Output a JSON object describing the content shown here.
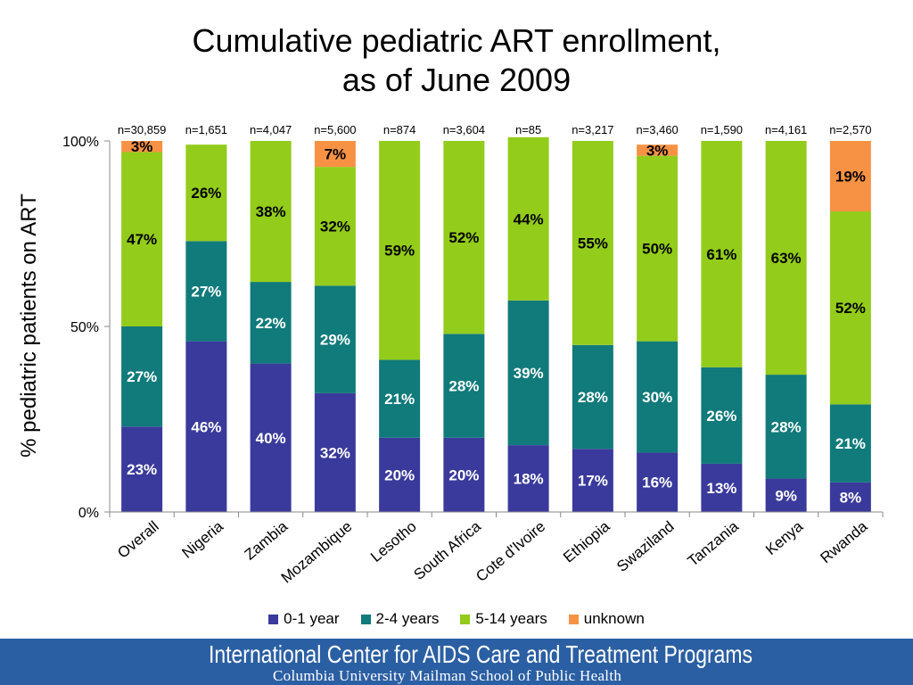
{
  "title_lines": [
    "Cumulative pediatric ART enrollment,",
    "as of June 2009"
  ],
  "legend": [
    {
      "label": "0-1 year",
      "color": "#3a3a9c"
    },
    {
      "label": "2-4 years",
      "color": "#117a7a"
    },
    {
      "label": "5-14 years",
      "color": "#93cc1b"
    },
    {
      "label": "unknown",
      "color": "#f79244"
    }
  ],
  "footer": {
    "line1": "International Center for AIDS Care and Treatment Programs",
    "line2": "Columbia University Mailman School of Public Health"
  },
  "chart_data": {
    "type": "bar",
    "stacked": true,
    "ylabel": "% pediatric patients on ART",
    "ylim": [
      0,
      100
    ],
    "yticks": [
      "0%",
      "50%",
      "100%"
    ],
    "categories": [
      "Overall",
      "Nigeria",
      "Zambia",
      "Mozambique",
      "Lesotho",
      "South Africa",
      "Cote d'Ivoire",
      "Ethiopia",
      "Swaziland",
      "Tanzania",
      "Kenya",
      "Rwanda"
    ],
    "n_labels": [
      "n=30,859",
      "n=1,651",
      "n=4,047",
      "n=5,600",
      "n=874",
      "n=3,604",
      "n=85",
      "n=3,217",
      "n=3,460",
      "n=1,590",
      "n=4,161",
      "n=2,570"
    ],
    "series": [
      {
        "name": "0-1 year",
        "color": "#3a3a9c",
        "values": [
          23,
          46,
          40,
          32,
          20,
          20,
          18,
          17,
          16,
          13,
          9,
          8
        ]
      },
      {
        "name": "2-4 years",
        "color": "#117a7a",
        "values": [
          27,
          27,
          22,
          29,
          21,
          28,
          39,
          28,
          30,
          26,
          28,
          21
        ]
      },
      {
        "name": "5-14 years",
        "color": "#93cc1b",
        "values": [
          47,
          26,
          38,
          32,
          59,
          52,
          44,
          55,
          50,
          61,
          63,
          52
        ]
      },
      {
        "name": "unknown",
        "color": "#f79244",
        "values": [
          3,
          0,
          0,
          7,
          0,
          0,
          0,
          0,
          3,
          0,
          0,
          19
        ]
      }
    ],
    "labels": [
      [
        "23%",
        "46%",
        "40%",
        "32%",
        "20%",
        "20%",
        "18%",
        "17%",
        "16%",
        "13%",
        "9%",
        "8%"
      ],
      [
        "27%",
        "27%",
        "22%",
        "29%",
        "21%",
        "28%",
        "39%",
        "28%",
        "30%",
        "26%",
        "28%",
        "21%"
      ],
      [
        "47%",
        "26%",
        "38%",
        "32%",
        "59%",
        "52%",
        "44%",
        "55%",
        "50%",
        "61%",
        "63%",
        "52%"
      ],
      [
        "3%",
        "",
        "",
        "7%",
        "",
        "",
        "",
        "",
        "3%",
        "",
        "",
        "19%"
      ]
    ]
  }
}
